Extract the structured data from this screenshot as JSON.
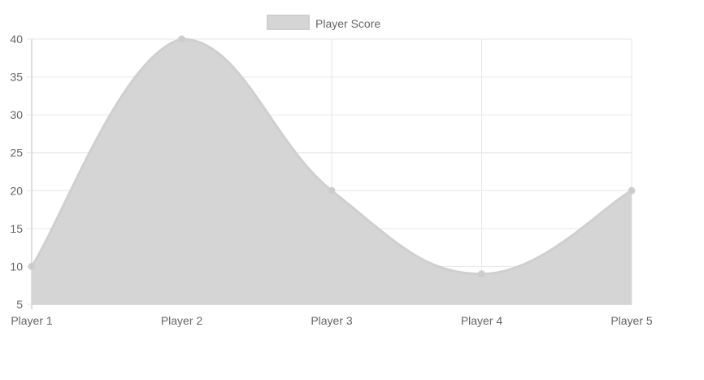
{
  "chart_data": {
    "type": "area",
    "categories": [
      "Player 1",
      "Player 2",
      "Player 3",
      "Player 4",
      "Player 5"
    ],
    "series": [
      {
        "name": "Player Score",
        "values": [
          10,
          40,
          20,
          9,
          20
        ]
      }
    ],
    "ylim": [
      5,
      40
    ],
    "yticks": [
      5,
      10,
      15,
      20,
      25,
      30,
      35,
      40
    ],
    "grid": true,
    "legend_position": "top",
    "colors": {
      "fill": "#d5d5d5",
      "stroke": "#cfcfcf",
      "point": "#cccccc",
      "grid": "#e6e6e6",
      "axis": "#bdbdbd",
      "text": "#666666"
    }
  }
}
